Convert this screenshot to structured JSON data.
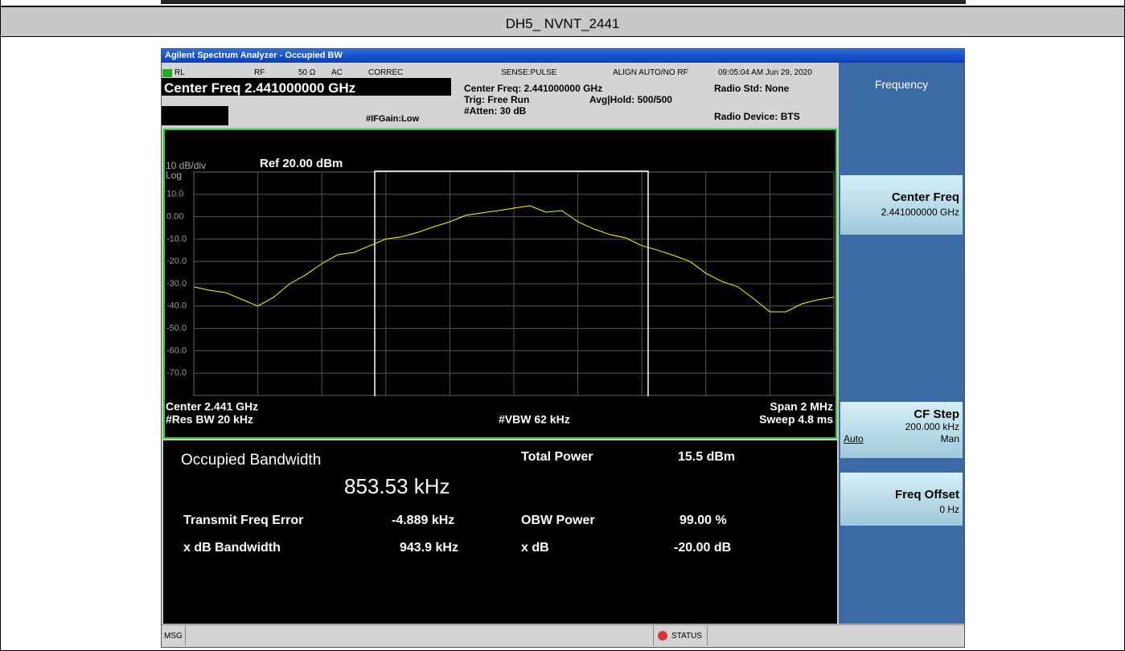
{
  "header": {
    "title": "DH5_ NVNT_2441"
  },
  "window": {
    "title": "Agilent Spectrum Analyzer - Occupied BW"
  },
  "status": {
    "rl": "RL",
    "rf": "RF",
    "impedance": "50 Ω",
    "coupling": "AC",
    "correc": "CORREC",
    "sense": "SENSE:PULSE",
    "align": "ALIGN AUTO/NO RF",
    "datetime": "09:05:04 AM Jun 29, 2020",
    "center_freq": "Center Freq 2.441000000 GHz",
    "ifgain": "#IFGain:Low",
    "center_freq_info": "Center Freq: 2.441000000 GHz",
    "trig": "Trig: Free Run",
    "atten": "#Atten: 30 dB",
    "avg": "Avg|Hold: 500/500",
    "radio_std": "Radio Std: None",
    "radio_device": "Radio Device: BTS"
  },
  "menu": {
    "title": "Frequency",
    "buttons": [
      {
        "label": "Center Freq",
        "value": "2.441000000 GHz"
      },
      {
        "label": "CF Step",
        "value": "200.000 kHz",
        "options": [
          "Auto",
          "Man"
        ]
      },
      {
        "label": "Freq Offset",
        "value": "0 Hz"
      }
    ]
  },
  "graph": {
    "scale": "10 dB/div",
    "scale_type": "Log",
    "ref": "Ref 20.00 dBm",
    "center": "Center 2.441 GHz",
    "res_bw": "#Res BW 20 kHz",
    "vbw": "#VBW 62 kHz",
    "span": "Span 2 MHz",
    "sweep": "Sweep 4.8 ms",
    "trace": {
      "type": "line",
      "color": "#ffff00",
      "ylim": [
        -80,
        20
      ],
      "yticks": [
        {
          "value": 10,
          "label": "10.0"
        },
        {
          "value": 0,
          "label": "0.00"
        },
        {
          "value": -10,
          "label": "-10.0"
        },
        {
          "value": -20,
          "label": "-20.0"
        },
        {
          "value": -30,
          "label": "-30.0"
        },
        {
          "value": -40,
          "label": "-40.0"
        },
        {
          "value": -50,
          "label": "-50.0"
        },
        {
          "value": -60,
          "label": "-60.0"
        },
        {
          "value": -70,
          "label": "-70.0"
        }
      ],
      "values": [
        -31.4,
        -33,
        -34,
        -37,
        -40,
        -36,
        -30,
        -26,
        -21,
        -17,
        -16,
        -13,
        -10,
        -9,
        -7,
        -4.5,
        -2.3,
        0.6,
        1.7,
        2.7,
        3.8,
        4.9,
        2,
        2.7,
        -2.3,
        -5.5,
        -8,
        -9.5,
        -13,
        -15,
        -17.4,
        -20,
        -25.3,
        -29,
        -31.4,
        -36.8,
        -42.6,
        -42.6,
        -39,
        -37.2,
        -36
      ]
    }
  },
  "results": {
    "occupied_bw_label": "Occupied Bandwidth",
    "occupied_bw_value": "853.53 kHz",
    "total_power_label": "Total Power",
    "total_power_value": "15.5 dBm",
    "freq_error_label": "Transmit Freq Error",
    "freq_error_value": "-4.889 kHz",
    "obw_power_label": "OBW Power",
    "obw_power_value": "99.00 %",
    "xdb_bw_label": "x dB Bandwidth",
    "xdb_bw_value": "943.9 kHz",
    "xdb_label": "x dB",
    "xdb_value": "-20.00 dB"
  },
  "statusbar": {
    "msg": "MSG",
    "status": "STATUS"
  }
}
